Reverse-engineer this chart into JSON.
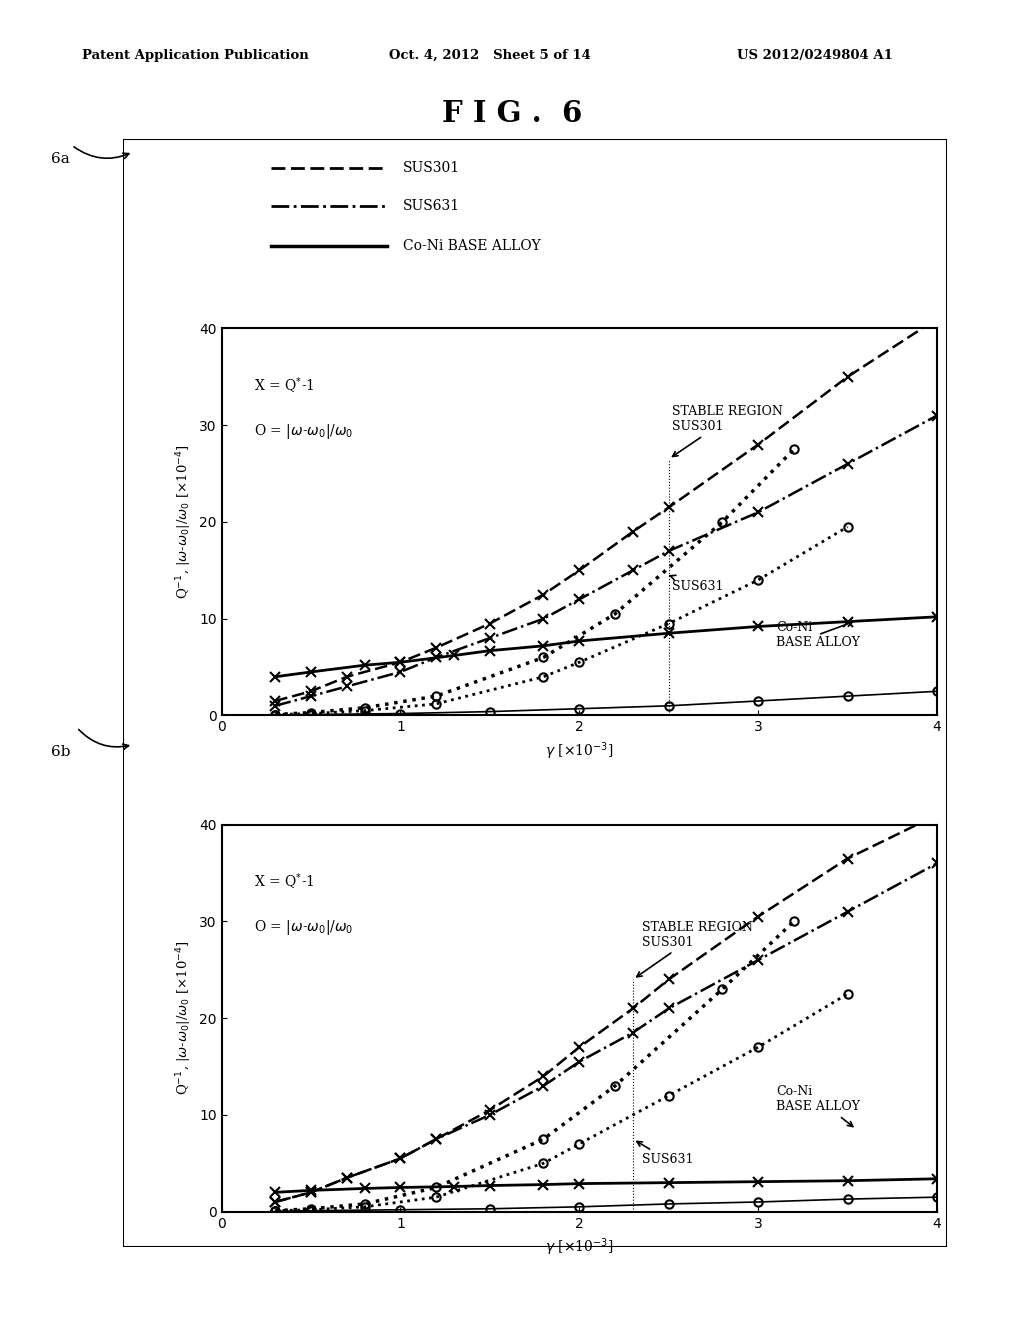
{
  "title": "F I G .  6",
  "header_left": "Patent Application Publication",
  "header_mid": "Oct. 4, 2012   Sheet 5 of 14",
  "header_right": "US 2012/0249804 A1",
  "xlim": [
    0,
    4
  ],
  "ylim": [
    0,
    40
  ],
  "xticks": [
    0,
    1,
    2,
    3,
    4
  ],
  "yticks": [
    0,
    10,
    20,
    30,
    40
  ],
  "plot6a": {
    "sus301_Q_x": [
      0.3,
      0.5,
      0.7,
      1.0,
      1.2,
      1.5,
      1.8,
      2.0,
      2.3,
      2.5,
      3.0,
      3.5,
      4.0
    ],
    "sus301_Q_y": [
      1.5,
      2.5,
      4.0,
      5.5,
      7.0,
      9.5,
      12.5,
      15.0,
      19.0,
      21.5,
      28.0,
      35.0,
      41.0
    ],
    "sus301_omega_x": [
      0.3,
      0.5,
      0.8,
      1.2,
      1.8,
      2.2,
      2.8,
      3.2
    ],
    "sus301_omega_y": [
      0.1,
      0.3,
      0.8,
      2.0,
      6.0,
      10.5,
      20.0,
      27.5
    ],
    "sus631_Q_x": [
      0.3,
      0.5,
      0.7,
      1.0,
      1.2,
      1.5,
      1.8,
      2.0,
      2.3,
      2.5,
      3.0,
      3.5,
      4.0
    ],
    "sus631_Q_y": [
      1.0,
      2.0,
      3.0,
      4.5,
      6.0,
      8.0,
      10.0,
      12.0,
      15.0,
      17.0,
      21.0,
      26.0,
      31.0
    ],
    "sus631_omega_x": [
      0.3,
      0.5,
      0.8,
      1.2,
      1.8,
      2.0,
      2.5,
      3.0,
      3.5
    ],
    "sus631_omega_y": [
      0.1,
      0.2,
      0.5,
      1.2,
      4.0,
      5.5,
      9.5,
      14.0,
      19.5
    ],
    "coni_Q_x": [
      0.3,
      0.5,
      0.8,
      1.0,
      1.3,
      1.5,
      1.8,
      2.0,
      2.5,
      3.0,
      3.5,
      4.0
    ],
    "coni_Q_y": [
      4.0,
      4.5,
      5.2,
      5.5,
      6.2,
      6.7,
      7.2,
      7.7,
      8.5,
      9.2,
      9.7,
      10.2
    ],
    "coni_omega_x": [
      0.3,
      0.5,
      1.0,
      1.5,
      2.0,
      2.5,
      3.0,
      3.5,
      4.0
    ],
    "coni_omega_y": [
      0.05,
      0.1,
      0.2,
      0.4,
      0.7,
      1.0,
      1.5,
      2.0,
      2.5
    ]
  },
  "plot6b": {
    "sus301_Q_x": [
      0.3,
      0.5,
      0.7,
      1.0,
      1.2,
      1.5,
      1.8,
      2.0,
      2.3,
      2.5,
      3.0,
      3.5,
      4.0
    ],
    "sus301_Q_y": [
      1.0,
      2.0,
      3.5,
      5.5,
      7.5,
      10.5,
      14.0,
      17.0,
      21.0,
      24.0,
      30.5,
      36.5,
      41.0
    ],
    "sus301_omega_x": [
      0.3,
      0.5,
      0.8,
      1.2,
      1.8,
      2.2,
      2.8,
      3.2
    ],
    "sus301_omega_y": [
      0.1,
      0.3,
      0.8,
      2.5,
      7.5,
      13.0,
      23.0,
      30.0
    ],
    "sus631_Q_x": [
      0.3,
      0.5,
      0.7,
      1.0,
      1.2,
      1.5,
      1.8,
      2.0,
      2.3,
      2.5,
      3.0,
      3.5,
      4.0
    ],
    "sus631_Q_y": [
      1.0,
      2.0,
      3.5,
      5.5,
      7.5,
      10.0,
      13.0,
      15.5,
      18.5,
      21.0,
      26.0,
      31.0,
      36.0
    ],
    "sus631_omega_x": [
      0.3,
      0.5,
      0.8,
      1.2,
      1.8,
      2.0,
      2.5,
      3.0,
      3.5
    ],
    "sus631_omega_y": [
      0.1,
      0.2,
      0.5,
      1.5,
      5.0,
      7.0,
      12.0,
      17.0,
      22.5
    ],
    "coni_Q_x": [
      0.3,
      0.5,
      0.8,
      1.0,
      1.3,
      1.5,
      1.8,
      2.0,
      2.5,
      3.0,
      3.5,
      4.0
    ],
    "coni_Q_y": [
      2.0,
      2.2,
      2.4,
      2.5,
      2.6,
      2.7,
      2.8,
      2.9,
      3.0,
      3.1,
      3.2,
      3.4
    ],
    "coni_omega_x": [
      0.3,
      0.5,
      1.0,
      1.5,
      2.0,
      2.5,
      3.0,
      3.5,
      4.0
    ],
    "coni_omega_y": [
      0.05,
      0.1,
      0.2,
      0.3,
      0.5,
      0.8,
      1.0,
      1.3,
      1.5
    ]
  },
  "bg_color": "#ffffff"
}
